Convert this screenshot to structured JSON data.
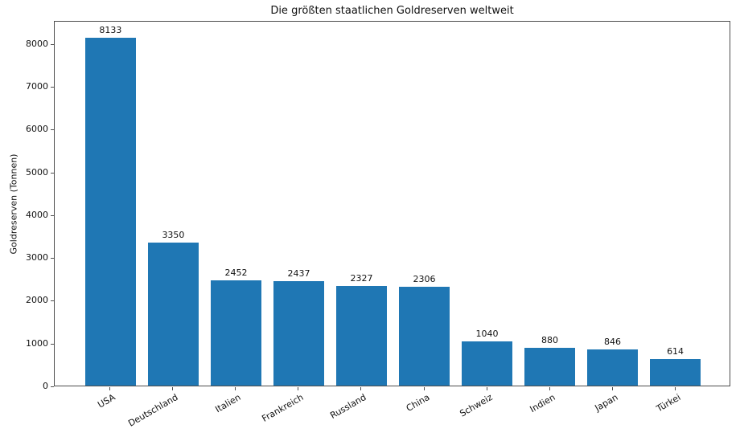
{
  "chart_data": {
    "type": "bar",
    "title": "Die größten staatlichen Goldreserven weltweit",
    "xlabel": "",
    "ylabel": "Goldreserven (Tonnen)",
    "categories": [
      "USA",
      "Deutschland",
      "Italien",
      "Frankreich",
      "Russland",
      "China",
      "Schweiz",
      "Indien",
      "Japan",
      "Türkei"
    ],
    "values": [
      8133,
      3350,
      2452,
      2437,
      2327,
      2306,
      1040,
      880,
      846,
      614
    ],
    "yticks": [
      0,
      1000,
      2000,
      3000,
      4000,
      5000,
      6000,
      7000,
      8000
    ],
    "ylim": [
      0,
      8540
    ],
    "bar_color": "#1f77b4",
    "grid": false,
    "legend": "none",
    "value_labels": true,
    "x_label_rotation_deg": 30
  }
}
